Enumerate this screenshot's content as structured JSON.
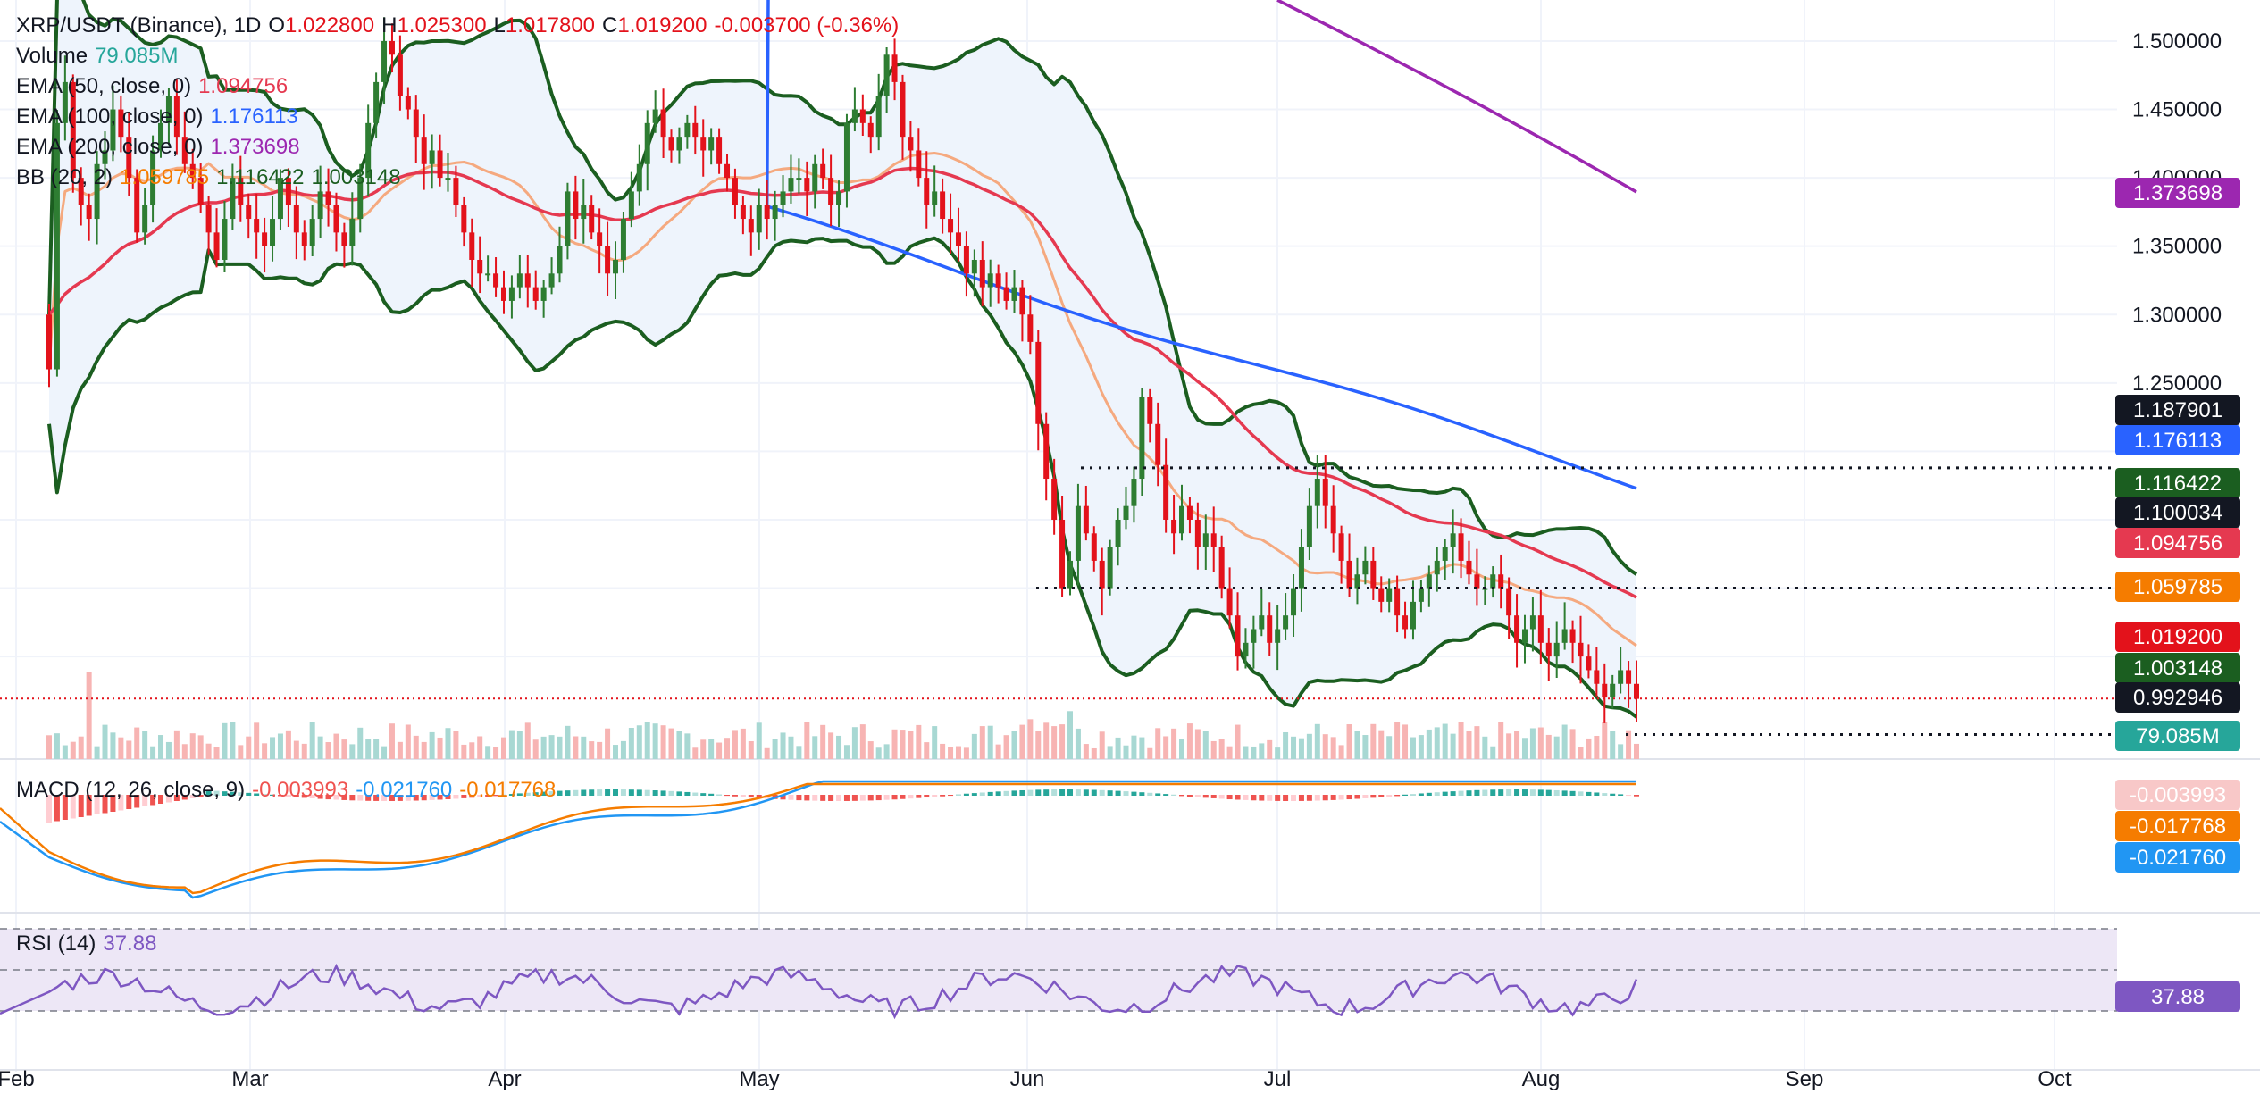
{
  "header": {
    "symbol": "XRP/USDT (Binance), 1D",
    "open_label": "O",
    "open": "1.022800",
    "high_label": "H",
    "high": "1.025300",
    "low_label": "L",
    "low": "1.017800",
    "close_label": "C",
    "close": "1.019200",
    "change": "-0.003700 (-0.36%)"
  },
  "legend": {
    "volume_label": "Volume",
    "volume_value": "79.085M",
    "ema50_label": "EMA (50, close, 0)",
    "ema50_value": "1.094756",
    "ema100_label": "EMA (100, close, 0)",
    "ema100_value": "1.176113",
    "ema200_label": "EMA (200, close, 0)",
    "ema200_value": "1.373698",
    "bb_label": "BB (20, 2)",
    "bb_basis": "1.059785",
    "bb_upper": "1.116422",
    "bb_lower": "1.003148",
    "macd_label": "MACD (12, 26, close, 9)",
    "macd_hist": "-0.003993",
    "macd_line": "-0.021760",
    "macd_signal": "-0.017768",
    "rsi_label": "RSI (14)",
    "rsi_value": "37.88"
  },
  "colors": {
    "up": "#26a69a",
    "down": "#ef5350",
    "up_candle": "#2e7d32",
    "down_candle": "#e3121b",
    "ema50": "#e53950",
    "ema100": "#2962ff",
    "ema200": "#9c27b0",
    "bb_basis": "#f5a97f",
    "bb_band": "#1b5e20",
    "bb_fill": "#eef4fc",
    "macd": "#2196f3",
    "signal": "#f57c00",
    "rsi": "#7e57c2",
    "rsi_bg": "#ede7f6"
  },
  "chart_data": {
    "type": "candlestick",
    "symbol": "XRP/USDT",
    "interval": "1D",
    "ylim": [
      0.975,
      1.53
    ],
    "y_ticks": [
      "1.500000",
      "1.450000",
      "1.400000",
      "1.350000",
      "1.300000",
      "1.250000"
    ],
    "x_ticks": [
      "Feb",
      "Mar",
      "Apr",
      "May",
      "Jun",
      "Jul",
      "Aug",
      "Sep",
      "Oct"
    ],
    "levels": [
      1.187901,
      1.100034,
      0.992946
    ],
    "price_tags": [
      {
        "value": "1.373698",
        "color": "#9c27b0",
        "y": 1.373698
      },
      {
        "value": "1.187901",
        "color": "#131722",
        "y": 1.187901
      },
      {
        "value": "1.176113",
        "color": "#2962ff",
        "y": 1.176113
      },
      {
        "value": "1.116422",
        "color": "#1b5e20",
        "y": 1.116422
      },
      {
        "value": "1.100034",
        "color": "#131722",
        "y": 1.100034
      },
      {
        "value": "1.094756",
        "color": "#e53950",
        "y": 1.094756
      },
      {
        "value": "1.059785",
        "color": "#f57c00",
        "y": 1.059785
      },
      {
        "value": "1.019200",
        "color": "#e3121b",
        "y": 1.0192
      },
      {
        "value": "1.003148",
        "color": "#1b5e20",
        "y": 1.003148
      },
      {
        "value": "0.992946",
        "color": "#131722",
        "y": 0.992946
      }
    ],
    "volume_tag": {
      "value": "79.085M",
      "color": "#26a69a"
    },
    "macd_tags": [
      {
        "value": "-0.003993",
        "color": "#f8c8c8",
        "text": "#131722"
      },
      {
        "value": "-0.017768",
        "color": "#f57c00",
        "text": "#ffffff"
      },
      {
        "value": "-0.021760",
        "color": "#2196f3",
        "text": "#ffffff"
      }
    ],
    "rsi_tag": {
      "value": "37.88",
      "color": "#7e57c2"
    },
    "closes": [
      1.26,
      1.44,
      1.47,
      1.4,
      1.38,
      1.37,
      1.41,
      1.42,
      1.45,
      1.43,
      1.4,
      1.36,
      1.38,
      1.42,
      1.44,
      1.46,
      1.43,
      1.41,
      1.4,
      1.38,
      1.36,
      1.34,
      1.37,
      1.4,
      1.38,
      1.37,
      1.36,
      1.35,
      1.37,
      1.4,
      1.38,
      1.36,
      1.35,
      1.37,
      1.39,
      1.38,
      1.36,
      1.35,
      1.37,
      1.4,
      1.44,
      1.47,
      1.5,
      1.49,
      1.46,
      1.45,
      1.43,
      1.41,
      1.42,
      1.4,
      1.4,
      1.38,
      1.36,
      1.34,
      1.33,
      1.33,
      1.32,
      1.31,
      1.32,
      1.33,
      1.32,
      1.31,
      1.32,
      1.33,
      1.35,
      1.39,
      1.37,
      1.38,
      1.36,
      1.35,
      1.33,
      1.34,
      1.37,
      1.39,
      1.41,
      1.44,
      1.45,
      1.43,
      1.42,
      1.43,
      1.44,
      1.43,
      1.42,
      1.43,
      1.41,
      1.4,
      1.38,
      1.37,
      1.36,
      1.38,
      1.37,
      1.38,
      1.39,
      1.4,
      1.4,
      1.39,
      1.41,
      1.4,
      1.38,
      1.39,
      1.44,
      1.45,
      1.44,
      1.43,
      1.46,
      1.49,
      1.47,
      1.43,
      1.42,
      1.4,
      1.38,
      1.39,
      1.37,
      1.36,
      1.35,
      1.33,
      1.34,
      1.32,
      1.33,
      1.32,
      1.31,
      1.32,
      1.3,
      1.28,
      1.22,
      1.18,
      1.15,
      1.1,
      1.12,
      1.16,
      1.14,
      1.12,
      1.1,
      1.13,
      1.15,
      1.16,
      1.18,
      1.24,
      1.22,
      1.19,
      1.15,
      1.14,
      1.16,
      1.15,
      1.13,
      1.14,
      1.13,
      1.1,
      1.08,
      1.05,
      1.06,
      1.07,
      1.08,
      1.06,
      1.07,
      1.08,
      1.1,
      1.13,
      1.16,
      1.18,
      1.16,
      1.14,
      1.12,
      1.1,
      1.11,
      1.12,
      1.1,
      1.09,
      1.1,
      1.08,
      1.07,
      1.09,
      1.1,
      1.11,
      1.12,
      1.13,
      1.14,
      1.12,
      1.11,
      1.1,
      1.1,
      1.11,
      1.1,
      1.08,
      1.06,
      1.07,
      1.08,
      1.06,
      1.05,
      1.06,
      1.07,
      1.06,
      1.05,
      1.04,
      1.03,
      1.02,
      1.03,
      1.04,
      1.03,
      1.019
    ],
    "macd_panel": {
      "hist_last": -0.003993,
      "macd_last": -0.02176,
      "signal_last": -0.017768
    },
    "rsi_panel": {
      "last": 37.88,
      "upper": 70,
      "middle": 50,
      "lower": 30
    }
  }
}
